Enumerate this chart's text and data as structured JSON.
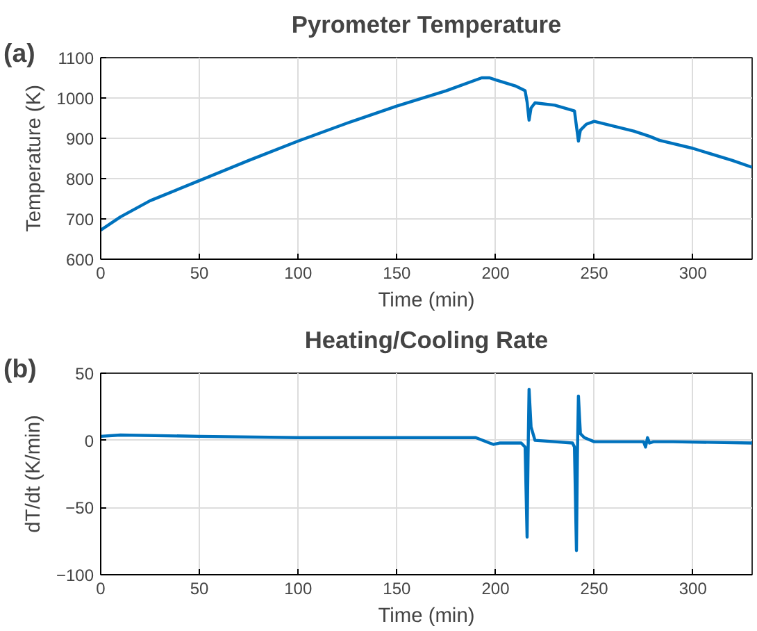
{
  "chart_data": [
    {
      "type": "line",
      "title": "Pyrometer Temperature",
      "xlabel": "Time (min)",
      "ylabel": "Temperature (K)",
      "annotations": [
        "(a)"
      ],
      "x": [
        0,
        10,
        25,
        50,
        75,
        100,
        125,
        150,
        175,
        193,
        197,
        200,
        210,
        215,
        216,
        217,
        218,
        220,
        230,
        240,
        241,
        242,
        243,
        246,
        250,
        260,
        270,
        278,
        283,
        300,
        320,
        330
      ],
      "series": [
        {
          "color": "#0072bd",
          "values": [
            672,
            705,
            745,
            795,
            845,
            893,
            938,
            980,
            1018,
            1050,
            1050,
            1045,
            1030,
            1018,
            990,
            945,
            975,
            988,
            982,
            968,
            930,
            893,
            920,
            935,
            942,
            930,
            918,
            905,
            895,
            875,
            845,
            828
          ]
        }
      ],
      "xlim": [
        0,
        330
      ],
      "ylim": [
        600,
        1100
      ],
      "xticks": [
        0,
        50,
        100,
        150,
        200,
        250,
        300
      ],
      "yticks": [
        600,
        700,
        800,
        900,
        1000,
        1100
      ],
      "grid": true
    },
    {
      "type": "line",
      "title": "Heating/Cooling Rate",
      "xlabel": "Time (min)",
      "ylabel": "dT/dt (K/min)",
      "annotations": [
        "(b)"
      ],
      "x": [
        0,
        10,
        50,
        100,
        150,
        190,
        197,
        199,
        202,
        213,
        215,
        216,
        216.5,
        217,
        218,
        220,
        230,
        239,
        240,
        241,
        241.5,
        242,
        243,
        245,
        250,
        275,
        276,
        277,
        278,
        280,
        290,
        330
      ],
      "series": [
        {
          "color": "#0072bd",
          "values": [
            3,
            4,
            3,
            2,
            2,
            2,
            -2,
            -3,
            -2,
            -2,
            -5,
            -72,
            -10,
            38,
            10,
            0,
            -1,
            -2,
            -5,
            -82,
            -10,
            33,
            5,
            2,
            -1,
            -1,
            -5,
            2,
            -2,
            -1,
            -1,
            -2
          ]
        }
      ],
      "xlim": [
        0,
        330
      ],
      "ylim": [
        -100,
        50
      ],
      "xticks": [
        0,
        50,
        100,
        150,
        200,
        250,
        300
      ],
      "yticks": [
        -100,
        -50,
        0,
        50
      ],
      "grid": true
    }
  ]
}
